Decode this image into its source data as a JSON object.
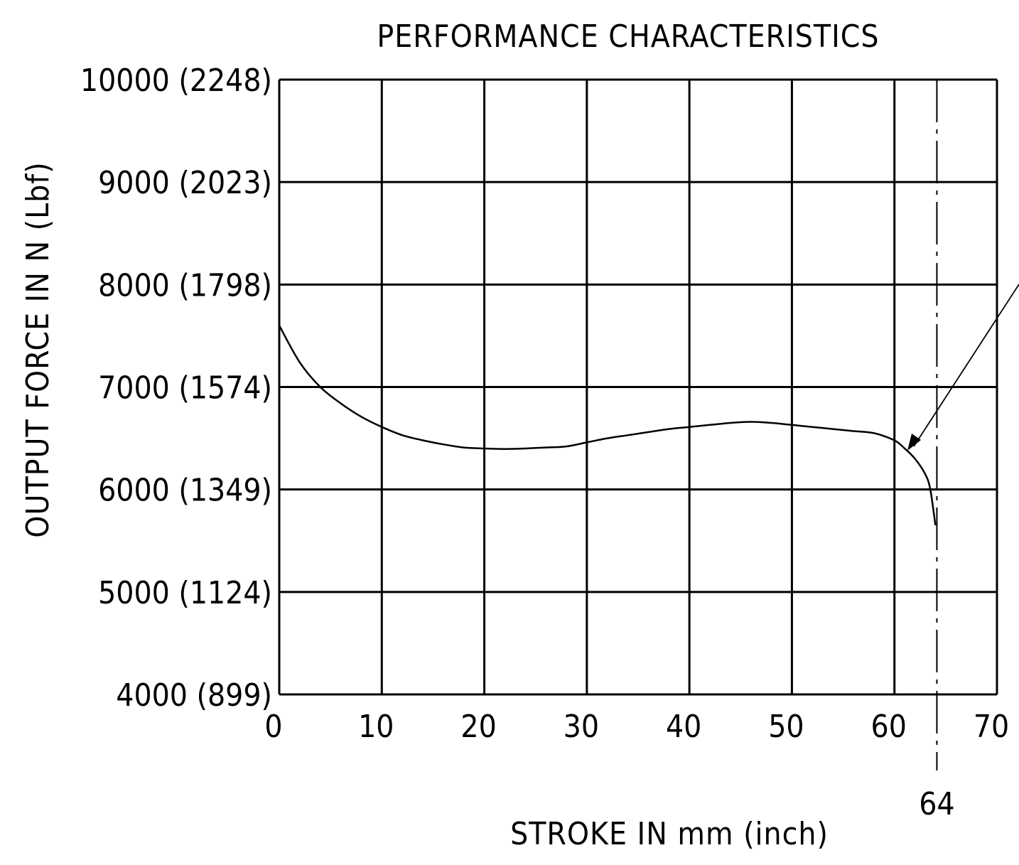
{
  "chart_data": {
    "type": "line",
    "title": "PERFORMANCE CHARACTERISTICS",
    "xlabel": "STROKE IN mm (inch)",
    "ylabel": "OUTPUT FORCE IN N (Lbf)",
    "xlim": [
      0,
      70
    ],
    "ylim": [
      4000,
      10000
    ],
    "grid": true,
    "x_ticks": [
      0,
      10,
      20,
      30,
      40,
      50,
      60,
      70
    ],
    "x_tick_labels": [
      "0",
      "10",
      "20",
      "30",
      "40",
      "50",
      "60",
      "70"
    ],
    "y_ticks": [
      4000,
      5000,
      6000,
      7000,
      8000,
      9000,
      10000
    ],
    "y_tick_labels": [
      "4000 (899)",
      "5000 (1124)",
      "6000 (1349)",
      "7000 (1574)",
      "8000 (1798)",
      "9000 (2023)",
      "10000 (2248)"
    ],
    "reference_line": {
      "x": 64,
      "label": "64"
    },
    "series": [
      {
        "x": [
          0,
          2,
          4,
          6,
          8,
          10,
          12,
          14,
          16,
          18,
          20,
          22,
          24,
          26,
          28,
          30,
          32,
          34,
          36,
          38,
          40,
          42,
          44,
          46,
          48,
          50,
          52,
          54,
          56,
          58,
          60,
          61,
          62,
          63,
          63.5,
          64
        ],
        "values": [
          7600,
          7240,
          7000,
          6840,
          6710,
          6610,
          6530,
          6480,
          6440,
          6410,
          6400,
          6395,
          6400,
          6410,
          6420,
          6460,
          6500,
          6530,
          6560,
          6590,
          6610,
          6630,
          6650,
          6660,
          6650,
          6630,
          6610,
          6590,
          6570,
          6550,
          6480,
          6400,
          6300,
          6150,
          6000,
          5650
        ]
      }
    ]
  }
}
